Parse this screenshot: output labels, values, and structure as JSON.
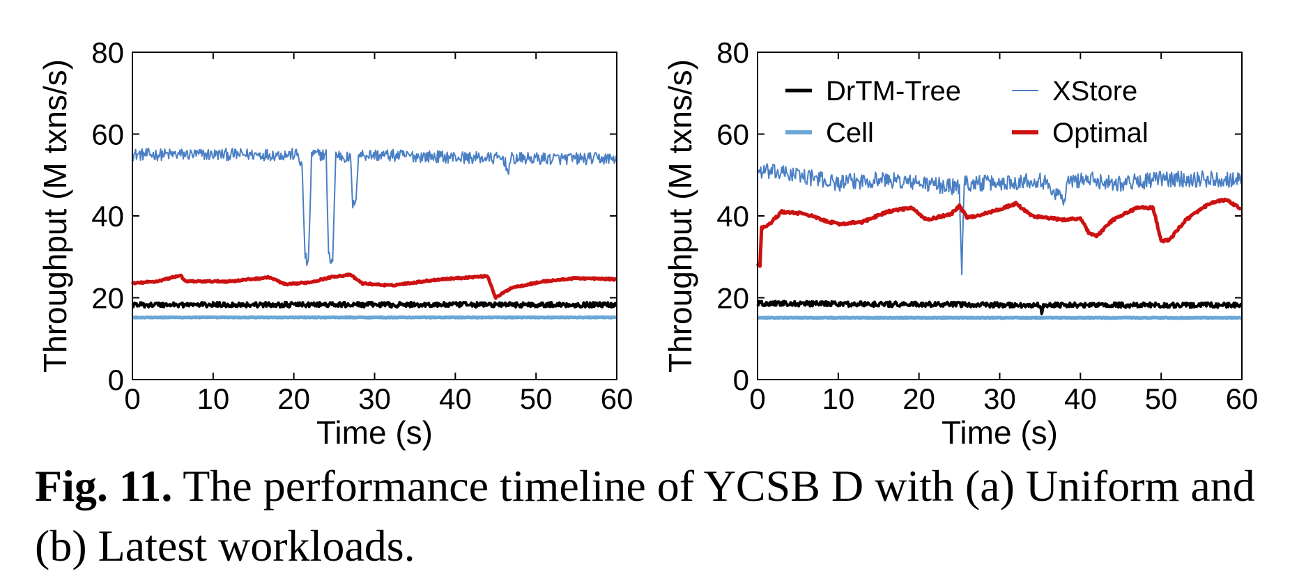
{
  "caption": {
    "label": "Fig. 11.",
    "text": " The performance timeline of YCSB D with (a) Uniform and (b) Latest workloads."
  },
  "legend": [
    {
      "key": "drtm",
      "name": "DrTM-Tree",
      "color": "#000000",
      "width": 4
    },
    {
      "key": "xstore",
      "name": "XStore",
      "color": "#4a7fc4",
      "width": 2
    },
    {
      "key": "cell",
      "name": "Cell",
      "color": "#6aa7d6",
      "width": 5
    },
    {
      "key": "optimal",
      "name": "Optimal",
      "color": "#cc1111",
      "width": 5
    }
  ],
  "chart_data": [
    {
      "type": "line",
      "xlabel": "Time (s)",
      "ylabel": "Throughput (M txns/s)",
      "xlim": [
        0,
        60
      ],
      "ylim": [
        0,
        80
      ],
      "xticks": [
        0,
        10,
        20,
        30,
        40,
        50,
        60
      ],
      "yticks": [
        0,
        20,
        40,
        60,
        80
      ],
      "grid": false,
      "series": [
        {
          "key": "xstore",
          "base": [
            [
              0,
              55
            ],
            [
              20,
              55
            ],
            [
              20.5,
              55
            ],
            [
              21,
              52
            ],
            [
              21.4,
              30
            ],
            [
              21.8,
              28
            ],
            [
              22.2,
              55
            ],
            [
              24,
              55
            ],
            [
              24.3,
              30
            ],
            [
              24.8,
              29
            ],
            [
              25.2,
              55
            ],
            [
              27,
              54
            ],
            [
              27.3,
              43
            ],
            [
              27.6,
              42
            ],
            [
              28,
              55
            ],
            [
              46,
              54
            ],
            [
              46.5,
              51
            ],
            [
              47,
              54
            ],
            [
              60,
              54
            ]
          ],
          "noise": 1.5
        },
        {
          "key": "optimal",
          "base": [
            [
              0,
              23.5
            ],
            [
              3,
              24
            ],
            [
              5,
              25
            ],
            [
              6,
              25.5
            ],
            [
              6.5,
              24
            ],
            [
              12,
              24
            ],
            [
              17,
              25
            ],
            [
              19,
              23.2
            ],
            [
              22,
              23.8
            ],
            [
              25,
              25.2
            ],
            [
              27,
              25.6
            ],
            [
              28.5,
              23.5
            ],
            [
              32,
              23
            ],
            [
              38,
              24.5
            ],
            [
              44,
              25.3
            ],
            [
              45,
              20
            ],
            [
              47,
              22.5
            ],
            [
              51,
              24
            ],
            [
              55,
              24.8
            ],
            [
              60,
              24.5
            ]
          ],
          "noise": 0.2
        },
        {
          "key": "drtm",
          "base": [
            [
              0,
              18.3
            ],
            [
              60,
              18.3
            ]
          ],
          "noise": 0.6
        },
        {
          "key": "cell",
          "base": [
            [
              0,
              15.2
            ],
            [
              60,
              15.2
            ]
          ],
          "noise": 0.1
        }
      ]
    },
    {
      "type": "line",
      "xlabel": "Time (s)",
      "ylabel": "Throughput (M txns/s)",
      "xlim": [
        0,
        60
      ],
      "ylim": [
        0,
        80
      ],
      "xticks": [
        0,
        10,
        20,
        30,
        40,
        50,
        60
      ],
      "yticks": [
        0,
        20,
        40,
        60,
        80
      ],
      "grid": false,
      "series": [
        {
          "key": "xstore",
          "base": [
            [
              0,
              51
            ],
            [
              5,
              50
            ],
            [
              10,
              48
            ],
            [
              15,
              49
            ],
            [
              20,
              48
            ],
            [
              25,
              47
            ],
            [
              25.3,
              27
            ],
            [
              25.6,
              48
            ],
            [
              30,
              48
            ],
            [
              35,
              49
            ],
            [
              38,
              44
            ],
            [
              38.4,
              48
            ],
            [
              40,
              49
            ],
            [
              45,
              48
            ],
            [
              50,
              49
            ],
            [
              55,
              49
            ],
            [
              60,
              49
            ]
          ],
          "noise": 2.0
        },
        {
          "key": "optimal",
          "base": [
            [
              0,
              28
            ],
            [
              0.3,
              28
            ],
            [
              0.5,
              37
            ],
            [
              1.5,
              38
            ],
            [
              3,
              41
            ],
            [
              6,
              40.5
            ],
            [
              8,
              39
            ],
            [
              10,
              38
            ],
            [
              13,
              38.5
            ],
            [
              16,
              41
            ],
            [
              19,
              42
            ],
            [
              21,
              39
            ],
            [
              24,
              40.5
            ],
            [
              25,
              42.5
            ],
            [
              26,
              39.5
            ],
            [
              29,
              41
            ],
            [
              32,
              43
            ],
            [
              34,
              40
            ],
            [
              38,
              39
            ],
            [
              40,
              39.5
            ],
            [
              41,
              36
            ],
            [
              42,
              35
            ],
            [
              44,
              39
            ],
            [
              47,
              42
            ],
            [
              49,
              42
            ],
            [
              50,
              34
            ],
            [
              51,
              34
            ],
            [
              53,
              39
            ],
            [
              56,
              43
            ],
            [
              58,
              44
            ],
            [
              60,
              41.5
            ]
          ],
          "noise": 0.3
        },
        {
          "key": "drtm",
          "base": [
            [
              0,
              18.6
            ],
            [
              35,
              18.2
            ],
            [
              35.2,
              16
            ],
            [
              35.4,
              18.2
            ],
            [
              60,
              18.2
            ]
          ],
          "noise": 0.6
        },
        {
          "key": "cell",
          "base": [
            [
              0,
              15.1
            ],
            [
              60,
              15.1
            ]
          ],
          "noise": 0.1
        }
      ]
    }
  ]
}
